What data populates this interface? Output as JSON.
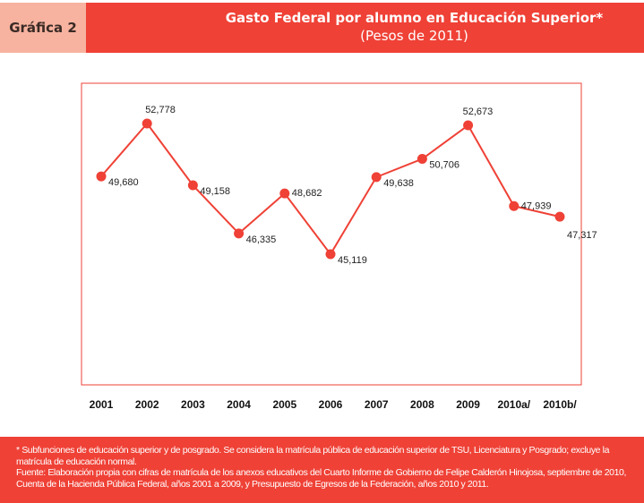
{
  "header": {
    "label": "Gráfica 2",
    "title": "Gasto Federal por alumno en Educación Superior*",
    "subtitle": "(Pesos de 2011)"
  },
  "chart_data": {
    "type": "line",
    "title": "Gasto Federal por alumno en Educación Superior*",
    "subtitle": "(Pesos de 2011)",
    "categories": [
      "2001",
      "2002",
      "2003",
      "2004",
      "2005",
      "2006",
      "2007",
      "2008",
      "2009",
      "2010a/",
      "2010b/"
    ],
    "values": [
      49680,
      52778,
      49158,
      46335,
      48682,
      45119,
      49638,
      50706,
      52673,
      47939,
      47317
    ],
    "value_labels": [
      "49,680",
      "52,778",
      "49,158",
      "46,335",
      "48,682",
      "45,119",
      "49,638",
      "50,706",
      "52,673",
      "47,939",
      "47,317"
    ],
    "xlabel": "",
    "ylabel": "",
    "ylim": [
      37460,
      55140
    ],
    "grid": false,
    "series_color": "#ef4136"
  },
  "footer": {
    "note": "* Subfunciones de educación superior y de posgrado. Se considera la matrícula pública de educación superior de TSU, Licenciatura  y Posgrado; excluye la matrícula de educación normal.",
    "source": "Fuente: Elaboración propia con cifras de matrícula de los anexos educativos del Cuarto Informe de Gobierno de Felipe Calderón Hinojosa, septiembre de 2010, Cuenta de la Hacienda Pública Federal, años 2001 a 2009, y Presupuesto de Egresos de la Federación, años 2010 y 2011."
  }
}
